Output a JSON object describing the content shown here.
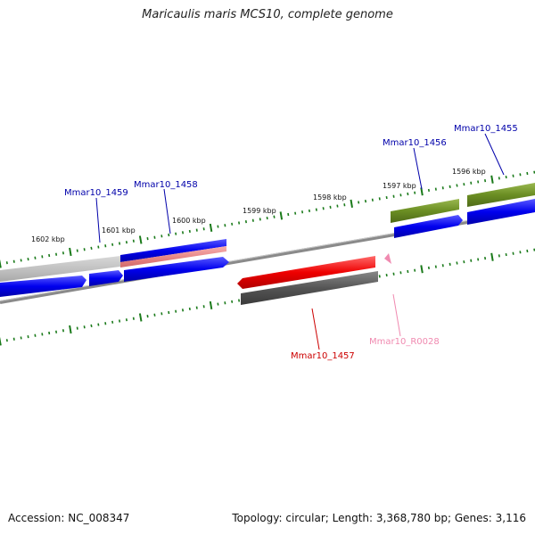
{
  "title": "Maricaulis maris MCS10, complete genome",
  "footer": {
    "accession": "Accession: NC_008347",
    "topology": "Topology: circular; Length: 3,368,780 bp; Genes: 3,116"
  },
  "colors": {
    "backbone": "#8a8a8a",
    "tick": "#1a7a1a",
    "cds": "#0000ee",
    "olive": "#6b8e23",
    "gray_gene": "#555555",
    "red_gene": "#ee0000",
    "pink_gene": "#f08ab0",
    "label_blue": "#0000aa",
    "label_red": "#cc0000",
    "label_pink": "#f08ab0"
  },
  "kbp_labels": [
    "1602 kbp",
    "1601 kbp",
    "1600 kbp",
    "1599 kbp",
    "1598 kbp",
    "1597 kbp",
    "1596 kbp"
  ],
  "gene_labels": [
    {
      "id": "Mmar10_1459",
      "color": "#0000aa"
    },
    {
      "id": "Mmar10_1458",
      "color": "#0000aa"
    },
    {
      "id": "Mmar10_1456",
      "color": "#0000aa"
    },
    {
      "id": "Mmar10_1455",
      "color": "#0000aa"
    },
    {
      "id": "Mmar10_1457",
      "color": "#cc0000"
    },
    {
      "id": "Mmar10_R0028",
      "color": "#f08ab0"
    }
  ]
}
